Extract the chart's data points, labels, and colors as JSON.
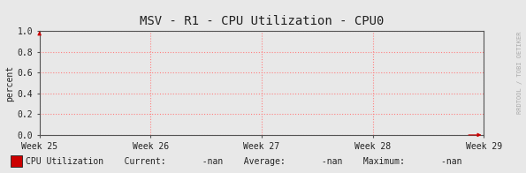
{
  "title": "MSV - R1 - CPU Utilization - CPU0",
  "ylabel": "percent",
  "bg_color": "#e8e8e8",
  "plot_bg_color": "#e8e8e8",
  "grid_color": "#ff8080",
  "axis_color": "#222222",
  "title_color": "#222222",
  "spine_color": "#555555",
  "ylim": [
    0.0,
    1.0
  ],
  "yticks": [
    0.0,
    0.2,
    0.4,
    0.6,
    0.8,
    1.0
  ],
  "xtick_labels": [
    "Week 25",
    "Week 26",
    "Week 27",
    "Week 28",
    "Week 29"
  ],
  "arrow_color": "#cc0000",
  "legend_box_color": "#cc0000",
  "legend_text": "CPU Utilization",
  "watermark": "RRDTOOL / TOBI OETIKER",
  "font_family": "monospace",
  "title_fontsize": 10,
  "label_fontsize": 7,
  "tick_fontsize": 7,
  "legend_fontsize": 7,
  "watermark_fontsize": 5
}
